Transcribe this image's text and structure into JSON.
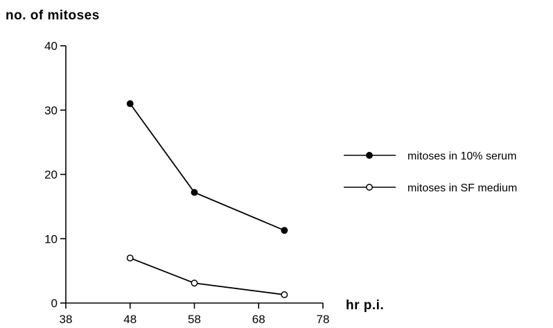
{
  "chart_data": {
    "type": "line",
    "title": "",
    "ylabel": "no. of mitoses",
    "xlabel": "hr p.i.",
    "xlim": [
      38,
      78
    ],
    "ylim": [
      0,
      40
    ],
    "xticks": [
      38,
      48,
      58,
      68,
      78
    ],
    "yticks": [
      0,
      10,
      20,
      30,
      40
    ],
    "grid": false,
    "legend_position": "right",
    "series": [
      {
        "name": "mitoses in 10% serum",
        "marker": "filled-circle",
        "color": "#000000",
        "x": [
          48,
          58,
          72
        ],
        "y": [
          31,
          17.2,
          11.3
        ]
      },
      {
        "name": "mitoses in SF medium",
        "marker": "open-circle",
        "color": "#000000",
        "x": [
          48,
          58,
          72
        ],
        "y": [
          7,
          3.1,
          1.3
        ]
      }
    ]
  }
}
